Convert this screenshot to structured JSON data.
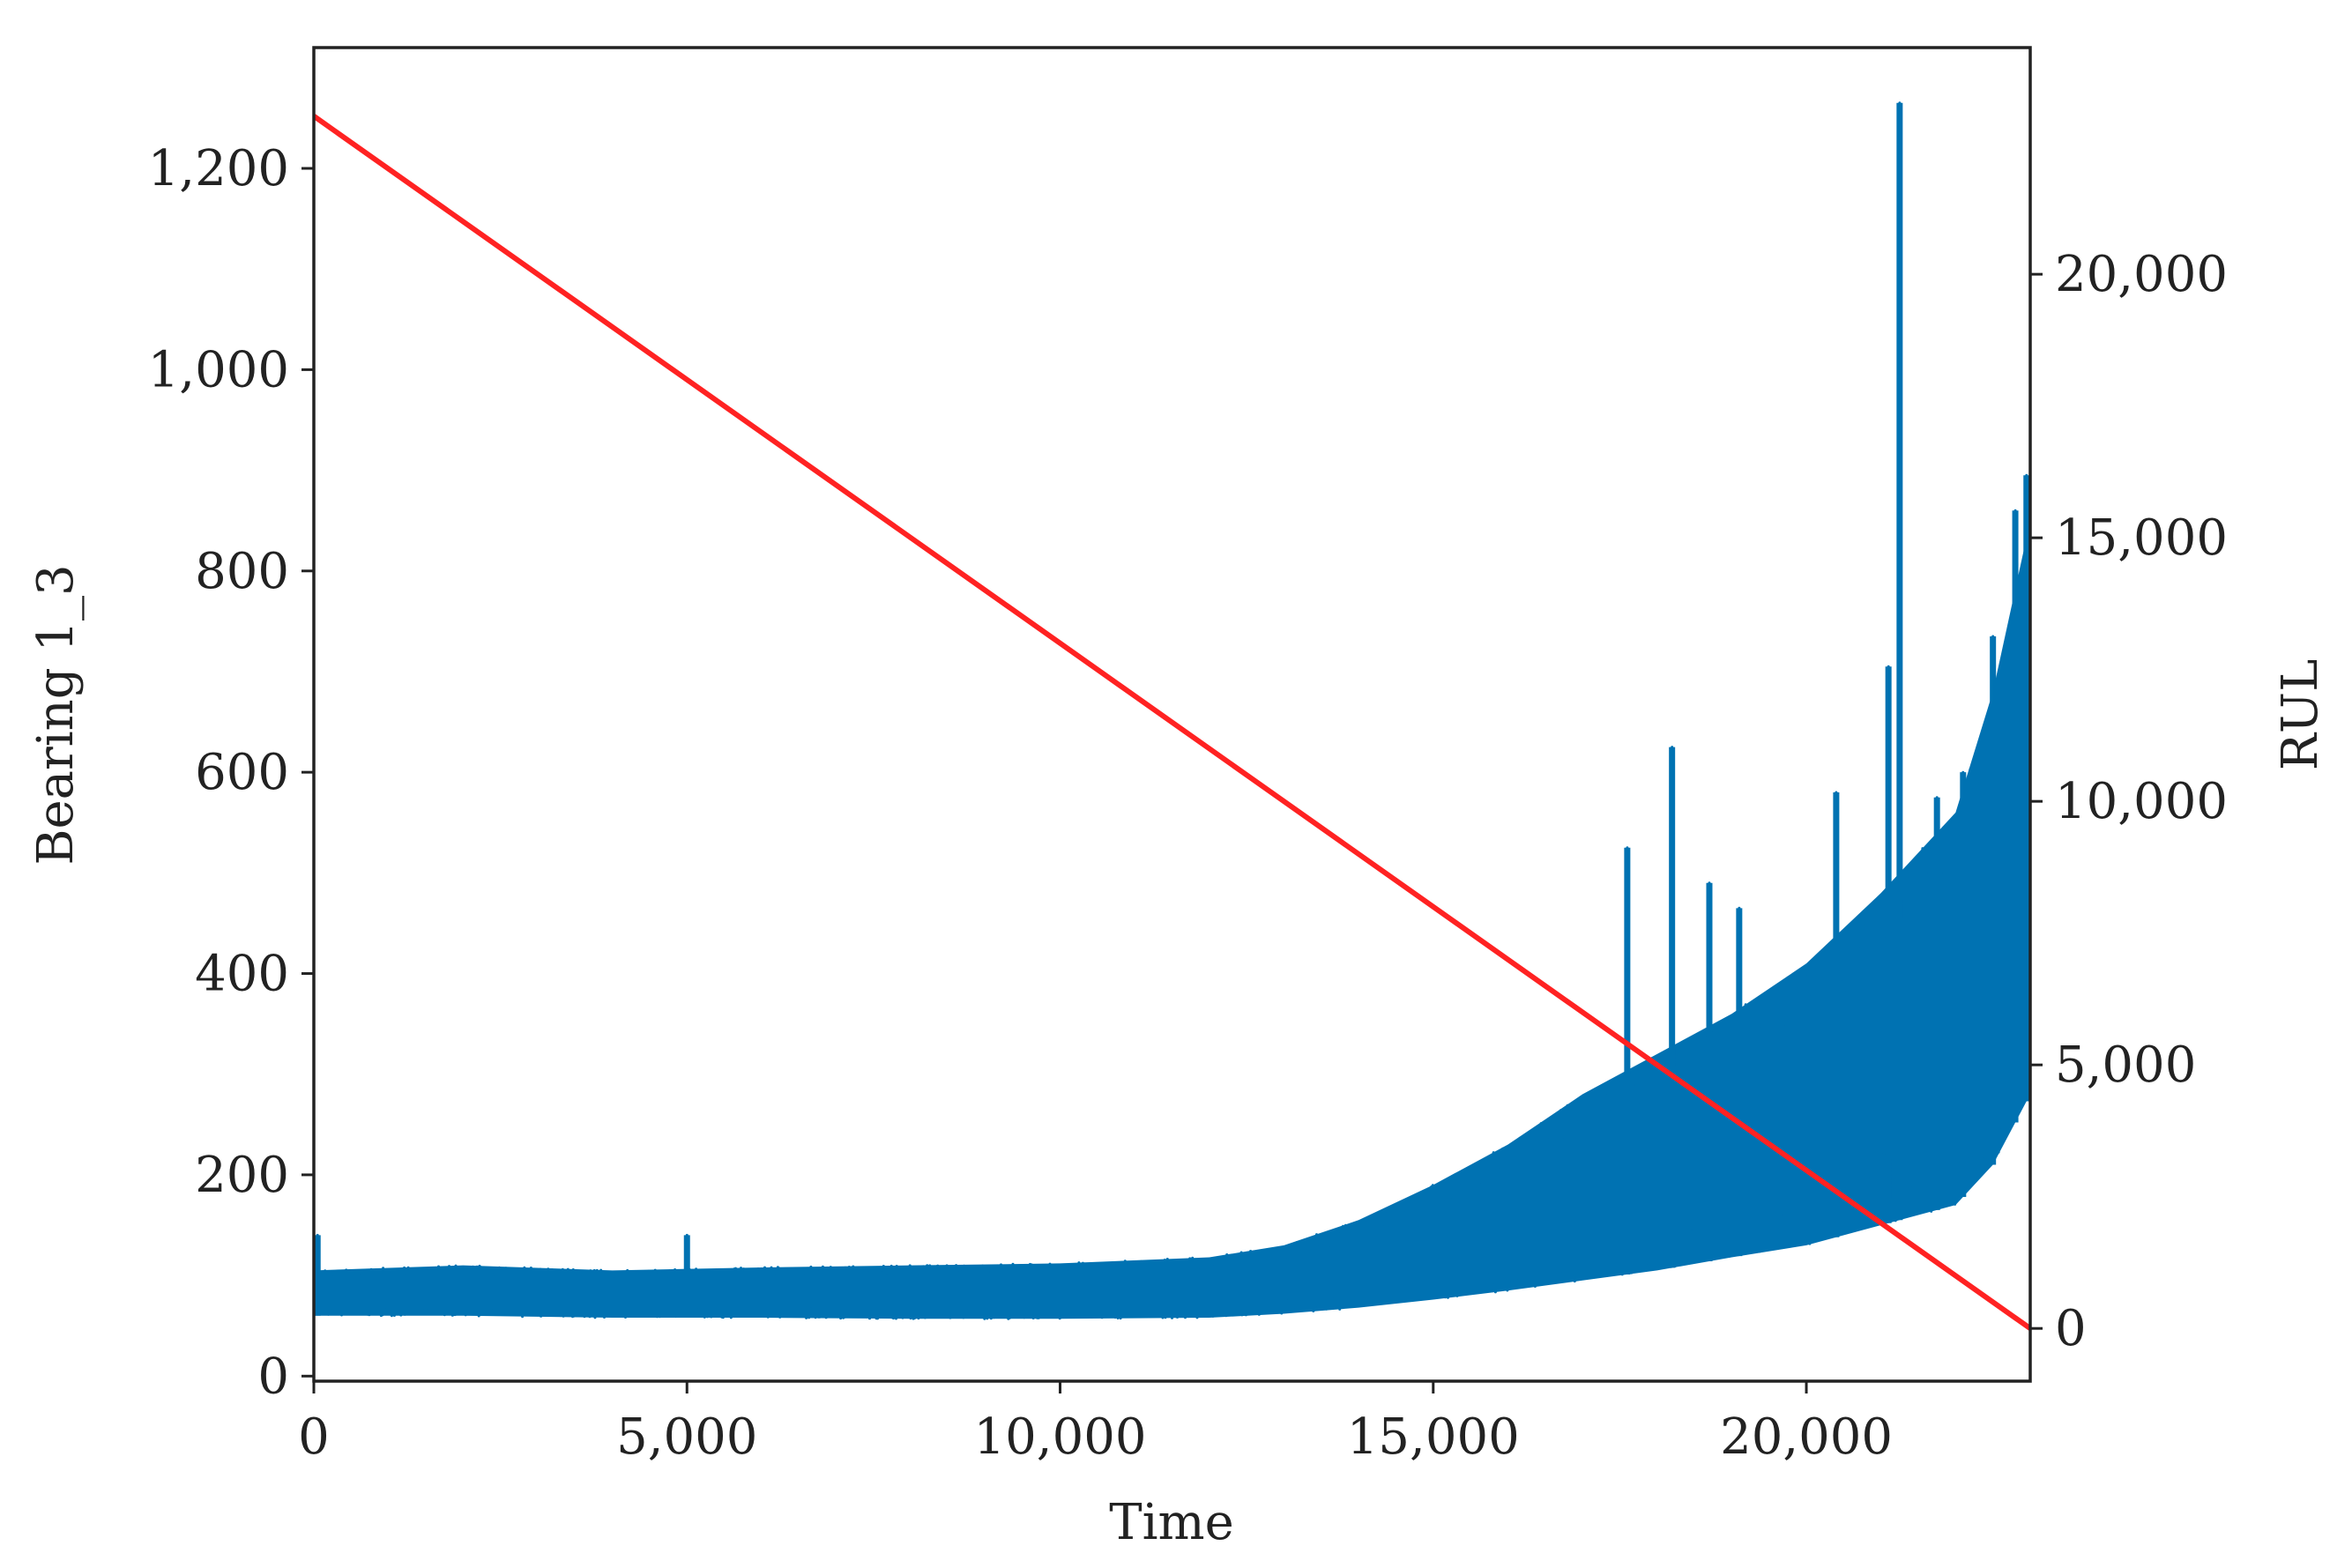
{
  "chart_data": {
    "type": "line",
    "xlabel": "Time",
    "ylabel": "Bearing 1_3",
    "y2label": "RUL",
    "xlim": [
      0,
      23000
    ],
    "ylim": [
      -5,
      1320
    ],
    "y2lim": [
      -1000,
      24300
    ],
    "x_ticks": [
      0,
      5000,
      10000,
      15000,
      20000
    ],
    "x_tick_labels": [
      "0",
      "5,000",
      "10,000",
      "15,000",
      "20,000"
    ],
    "y_ticks": [
      0,
      200,
      400,
      600,
      800,
      1000,
      1200
    ],
    "y_tick_labels": [
      "0",
      "200",
      "400",
      "600",
      "800",
      "1,000",
      "1,200"
    ],
    "y2_ticks": [
      0,
      5000,
      10000,
      15000,
      20000
    ],
    "y2_tick_labels": [
      "0",
      "5,000",
      "10,000",
      "15,000",
      "20,000"
    ],
    "grid": false,
    "series": [
      {
        "axis": "left",
        "color": "#0072b2",
        "style": "vibration band",
        "envelope": {
          "x": [
            0,
            2000,
            4000,
            6000,
            8000,
            10000,
            12000,
            13000,
            14000,
            15000,
            16000,
            17000,
            18000,
            19000,
            20000,
            21000,
            22000,
            22500,
            23000
          ],
          "lower": [
            60,
            60,
            58,
            58,
            57,
            57,
            58,
            62,
            68,
            76,
            85,
            95,
            105,
            118,
            130,
            150,
            170,
            210,
            280
          ],
          "upper": [
            105,
            110,
            105,
            108,
            110,
            112,
            118,
            130,
            155,
            190,
            230,
            280,
            320,
            360,
            410,
            480,
            560,
            680,
            850
          ]
        },
        "spikes": [
          {
            "x": 50,
            "y": 140
          },
          {
            "x": 5000,
            "y": 140
          },
          {
            "x": 17600,
            "y": 525
          },
          {
            "x": 18200,
            "y": 625
          },
          {
            "x": 18700,
            "y": 490
          },
          {
            "x": 19100,
            "y": 465
          },
          {
            "x": 20400,
            "y": 580
          },
          {
            "x": 21100,
            "y": 705
          },
          {
            "x": 21250,
            "y": 1265
          },
          {
            "x": 21750,
            "y": 575
          },
          {
            "x": 22100,
            "y": 600
          },
          {
            "x": 22500,
            "y": 735
          },
          {
            "x": 22800,
            "y": 860
          },
          {
            "x": 22950,
            "y": 895
          }
        ]
      },
      {
        "axis": "right",
        "color": "#ff2222",
        "style": "line",
        "x": [
          0,
          23000
        ],
        "y": [
          23000,
          0
        ]
      }
    ]
  }
}
